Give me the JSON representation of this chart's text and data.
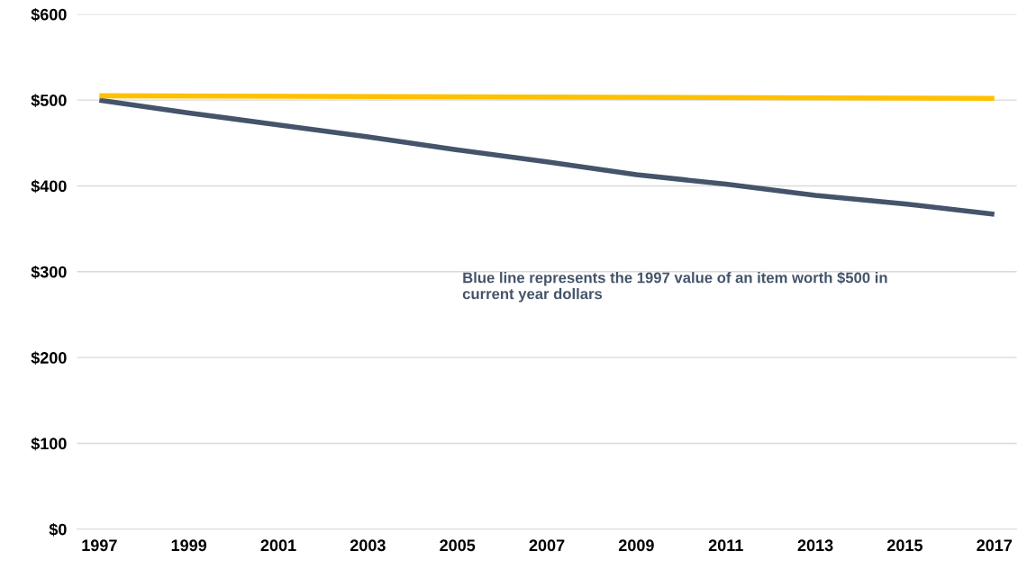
{
  "chart_data": {
    "type": "line",
    "series": [
      {
        "color": "#44546a",
        "x": [
          1997,
          1999,
          2001,
          2003,
          2005,
          2007,
          2009,
          2011,
          2013,
          2015,
          2017
        ],
        "values": [
          500,
          485,
          471,
          457,
          442,
          428,
          413,
          402,
          389,
          379,
          367
        ]
      },
      {
        "color": "#ffc000",
        "x": [
          1997,
          2017
        ],
        "values": [
          505,
          502
        ]
      }
    ],
    "xlim": [
      1996.5,
      2017.5
    ],
    "xticks": [
      1997,
      1999,
      2001,
      2003,
      2005,
      2007,
      2009,
      2011,
      2013,
      2015,
      2017
    ],
    "ylim": [
      0,
      600
    ],
    "yticks": [
      {
        "value": 0,
        "label": "$0"
      },
      {
        "value": 100,
        "label": "$100"
      },
      {
        "value": 200,
        "label": "$200"
      },
      {
        "value": 300,
        "label": "$300"
      },
      {
        "value": 400,
        "label": "$400"
      },
      {
        "value": 500,
        "label": "$500"
      },
      {
        "value": 600,
        "label": "$600"
      }
    ],
    "grid": "y",
    "marker": "none",
    "line_style": "solid",
    "legend": false,
    "annotations": [
      "Blue line represents the 1997 value of an item worth $500 in\ncurrent year dollars"
    ]
  }
}
